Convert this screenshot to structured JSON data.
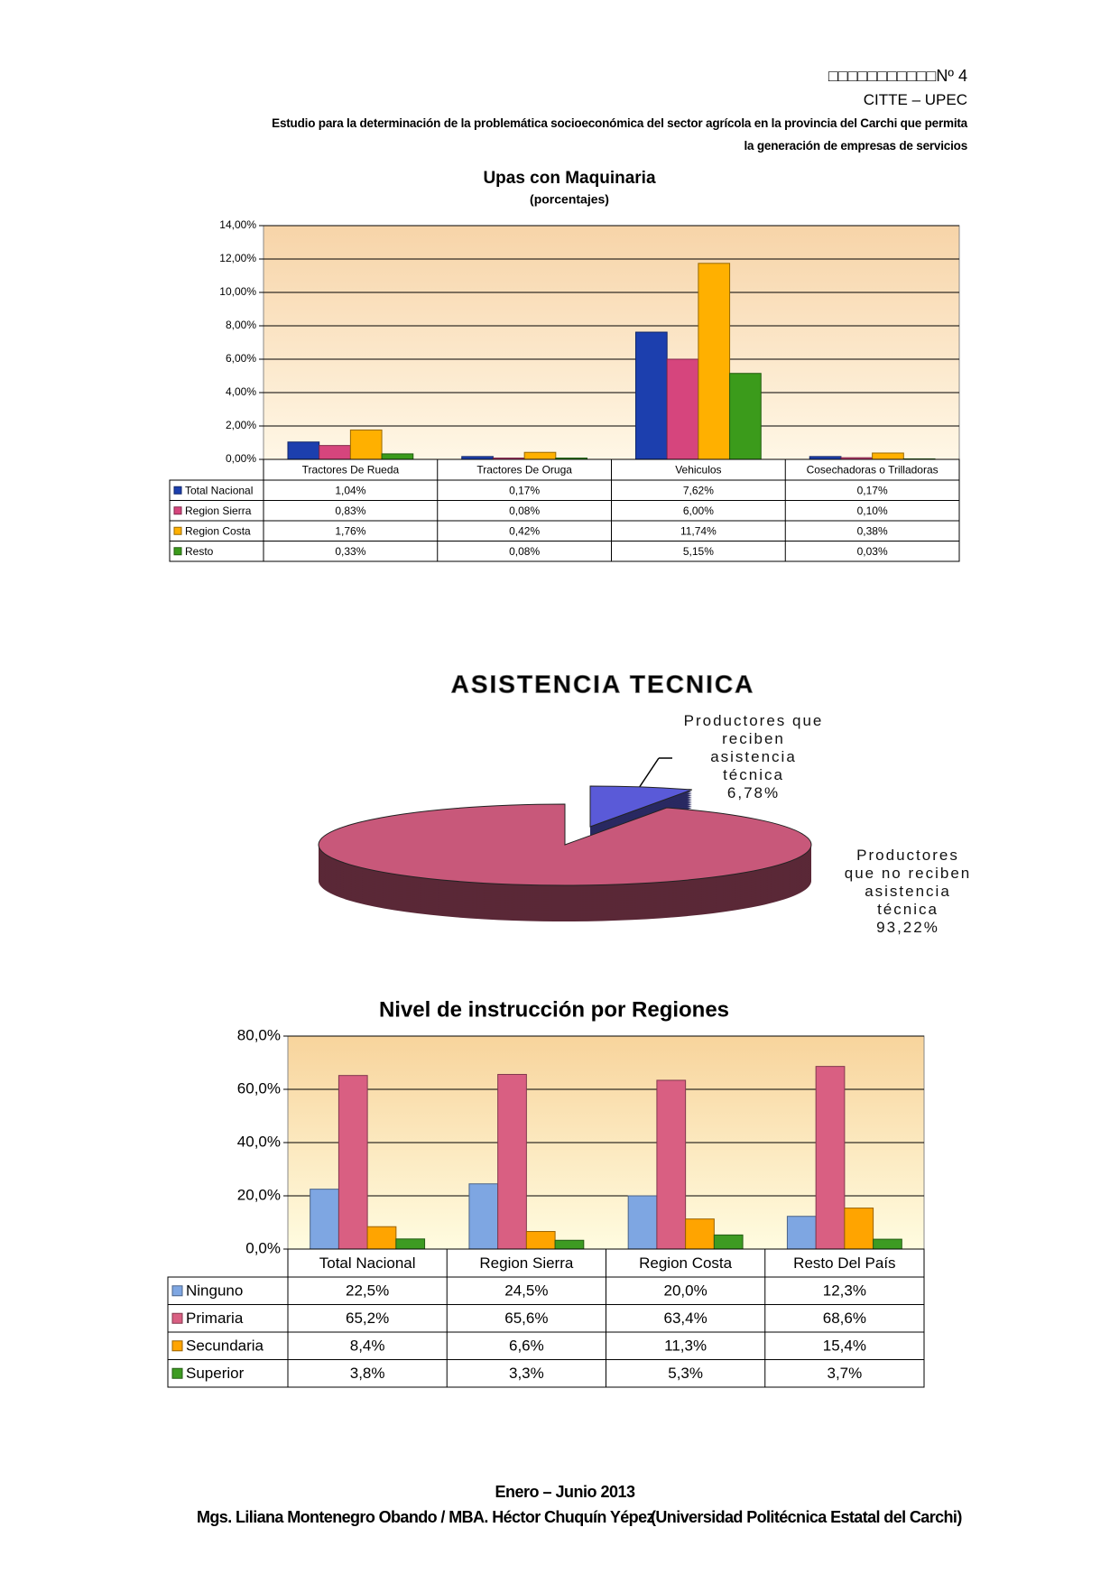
{
  "header": {
    "number": "□□□□□□□□□□□Nº 4",
    "org": "CITTE – UPEC",
    "study_line1": "Estudio para la determinación de la problemática socioeconómica del sector agrícola en la provincia del Carchi que permita",
    "study_line2": "la generación de empresas de servicios"
  },
  "chart_data": [
    {
      "type": "bar",
      "title": "Upas con Maquinaria",
      "subtitle": "(porcentajes)",
      "categories": [
        "Tractores De Rueda",
        "Tractores De Oruga",
        "Vehiculos",
        "Cosechadoras o Trilladoras"
      ],
      "series": [
        {
          "name": "Total Nacional",
          "color": "#1c3fae",
          "values": [
            1.04,
            0.17,
            7.62,
            0.17
          ],
          "value_labels": [
            "1,04%",
            "0,17%",
            "7,62%",
            "0,17%"
          ]
        },
        {
          "name": "Region Sierra",
          "color": "#d6457d",
          "values": [
            0.83,
            0.08,
            6.0,
            0.1
          ],
          "value_labels": [
            "0,83%",
            "0,08%",
            "6,00%",
            "0,10%"
          ]
        },
        {
          "name": "Region Costa",
          "color": "#ffb000",
          "values": [
            1.76,
            0.42,
            11.74,
            0.38
          ],
          "value_labels": [
            "1,76%",
            "0,42%",
            "11,74%",
            "0,38%"
          ]
        },
        {
          "name": "Resto",
          "color": "#3b9b1b",
          "values": [
            0.33,
            0.08,
            5.15,
            0.03
          ],
          "value_labels": [
            "0,33%",
            "0,08%",
            "5,15%",
            "0,03%"
          ]
        }
      ],
      "ylim": [
        0,
        14
      ],
      "yticks": [
        {
          "value": 0,
          "label": "0,00%"
        },
        {
          "value": 2,
          "label": "2,00%"
        },
        {
          "value": 4,
          "label": "4,00%"
        },
        {
          "value": 6,
          "label": "6,00%"
        },
        {
          "value": 8,
          "label": "8,00%"
        },
        {
          "value": 10,
          "label": "10,00%"
        },
        {
          "value": 12,
          "label": "12,00%"
        },
        {
          "value": 14,
          "label": "14,00%"
        }
      ],
      "grid": true
    },
    {
      "type": "pie",
      "title": "ASISTENCIA TECNICA",
      "categories": [
        "Productores que reciben asistencia técnica",
        "Productores que no reciben asistencia técnica"
      ],
      "values": [
        6.78,
        93.22
      ],
      "value_labels": [
        "6,78%",
        "93,22%"
      ],
      "colors": [
        "#5a5ad8",
        "#c8587a"
      ]
    },
    {
      "type": "bar",
      "title": "Nivel de instrucción por Regiones",
      "categories": [
        "Total Nacional",
        "Region Sierra",
        "Region Costa",
        "Resto Del País"
      ],
      "series": [
        {
          "name": "Ninguno",
          "color": "#7ea6e2",
          "values": [
            22.5,
            24.5,
            20.0,
            12.3
          ],
          "value_labels": [
            "22,5%",
            "24,5%",
            "20,0%",
            "12,3%"
          ]
        },
        {
          "name": "Primaria",
          "color": "#d95f82",
          "values": [
            65.2,
            65.6,
            63.4,
            68.6
          ],
          "value_labels": [
            "65,2%",
            "65,6%",
            "63,4%",
            "68,6%"
          ]
        },
        {
          "name": "Secundaria",
          "color": "#ffa400",
          "values": [
            8.4,
            6.6,
            11.3,
            15.4
          ],
          "value_labels": [
            "8,4%",
            "6,6%",
            "11,3%",
            "15,4%"
          ]
        },
        {
          "name": "Superior",
          "color": "#3d9b22",
          "values": [
            3.8,
            3.3,
            5.3,
            3.7
          ],
          "value_labels": [
            "3,8%",
            "3,3%",
            "5,3%",
            "3,7%"
          ]
        }
      ],
      "ylim": [
        0,
        80
      ],
      "yticks": [
        {
          "value": 0,
          "label": "0,0%"
        },
        {
          "value": 20,
          "label": "20,0%"
        },
        {
          "value": 40,
          "label": "40,0%"
        },
        {
          "value": 60,
          "label": "60,0%"
        },
        {
          "value": 80,
          "label": "80,0%"
        }
      ],
      "grid": true
    }
  ],
  "footer": {
    "period": "Enero – Junio 2013",
    "authors": "Mgs. Liliana Montenegro Obando / MBA. Héctor Chuquín Yépez",
    "university": "(Universidad Politécnica Estatal del Carchi)"
  }
}
